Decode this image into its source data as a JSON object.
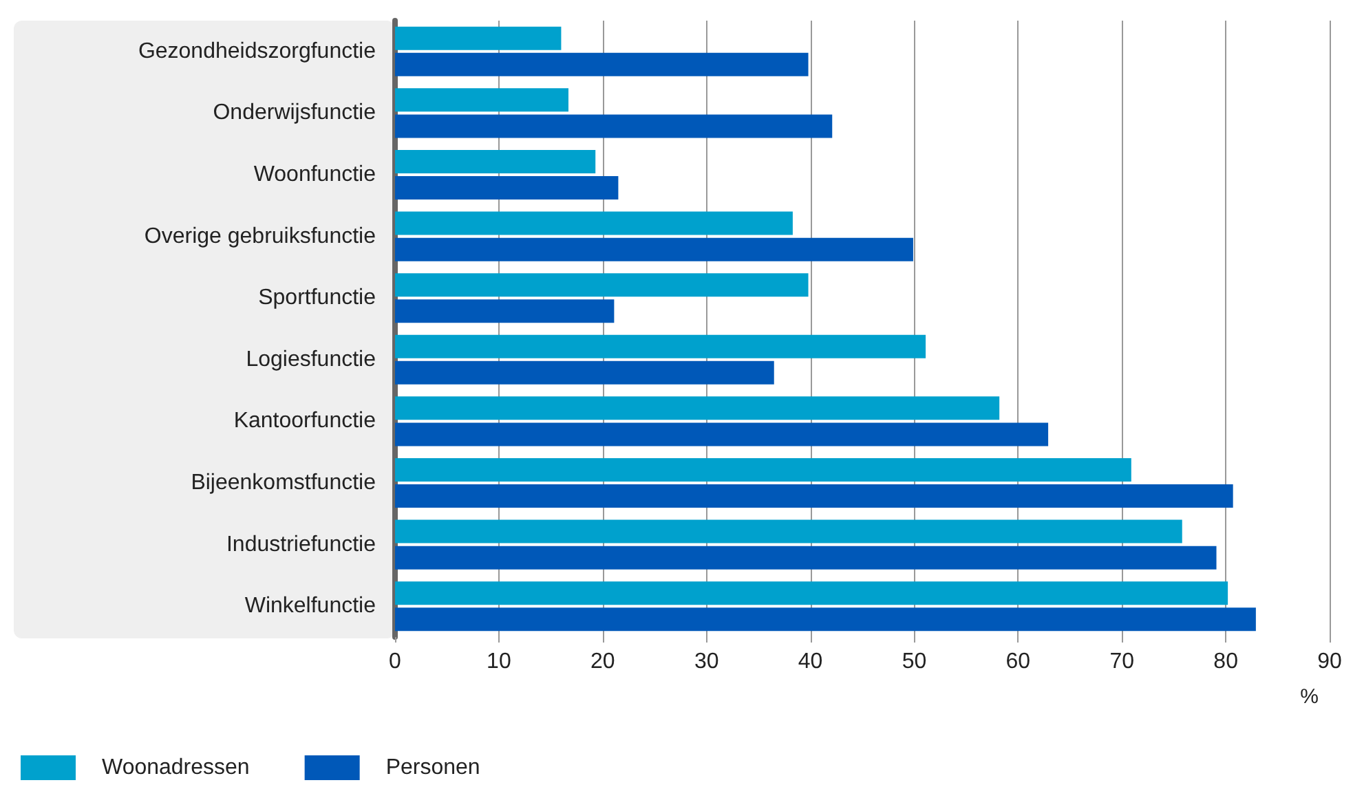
{
  "chart_data": {
    "type": "bar",
    "orientation": "horizontal",
    "xlabel": "%",
    "categories": [
      "Gezondheidszorgfunctie",
      "Onderwijsfunctie",
      "Woonfunctie",
      "Overige gebruiksfunctie",
      "Sportfunctie",
      "Logiesfunctie",
      "Kantoorfunctie",
      "Bijeenkomstfunctie",
      "Industriefunctie",
      "Winkelfunctie"
    ],
    "series": [
      {
        "name": "Woonadressen",
        "color": "#00a1cd",
        "values": [
          16.0,
          16.7,
          19.3,
          38.3,
          39.8,
          51.1,
          58.2,
          70.9,
          75.8,
          80.2
        ]
      },
      {
        "name": "Personen",
        "color": "#0058b8",
        "values": [
          39.8,
          42.1,
          21.5,
          49.9,
          21.1,
          36.5,
          62.9,
          80.7,
          79.1,
          82.9
        ]
      }
    ],
    "xlim": [
      0,
      90
    ],
    "xticks": [
      0,
      10,
      20,
      30,
      40,
      50,
      60,
      70,
      80,
      90
    ],
    "grid": "x",
    "legend": "bottom left"
  }
}
